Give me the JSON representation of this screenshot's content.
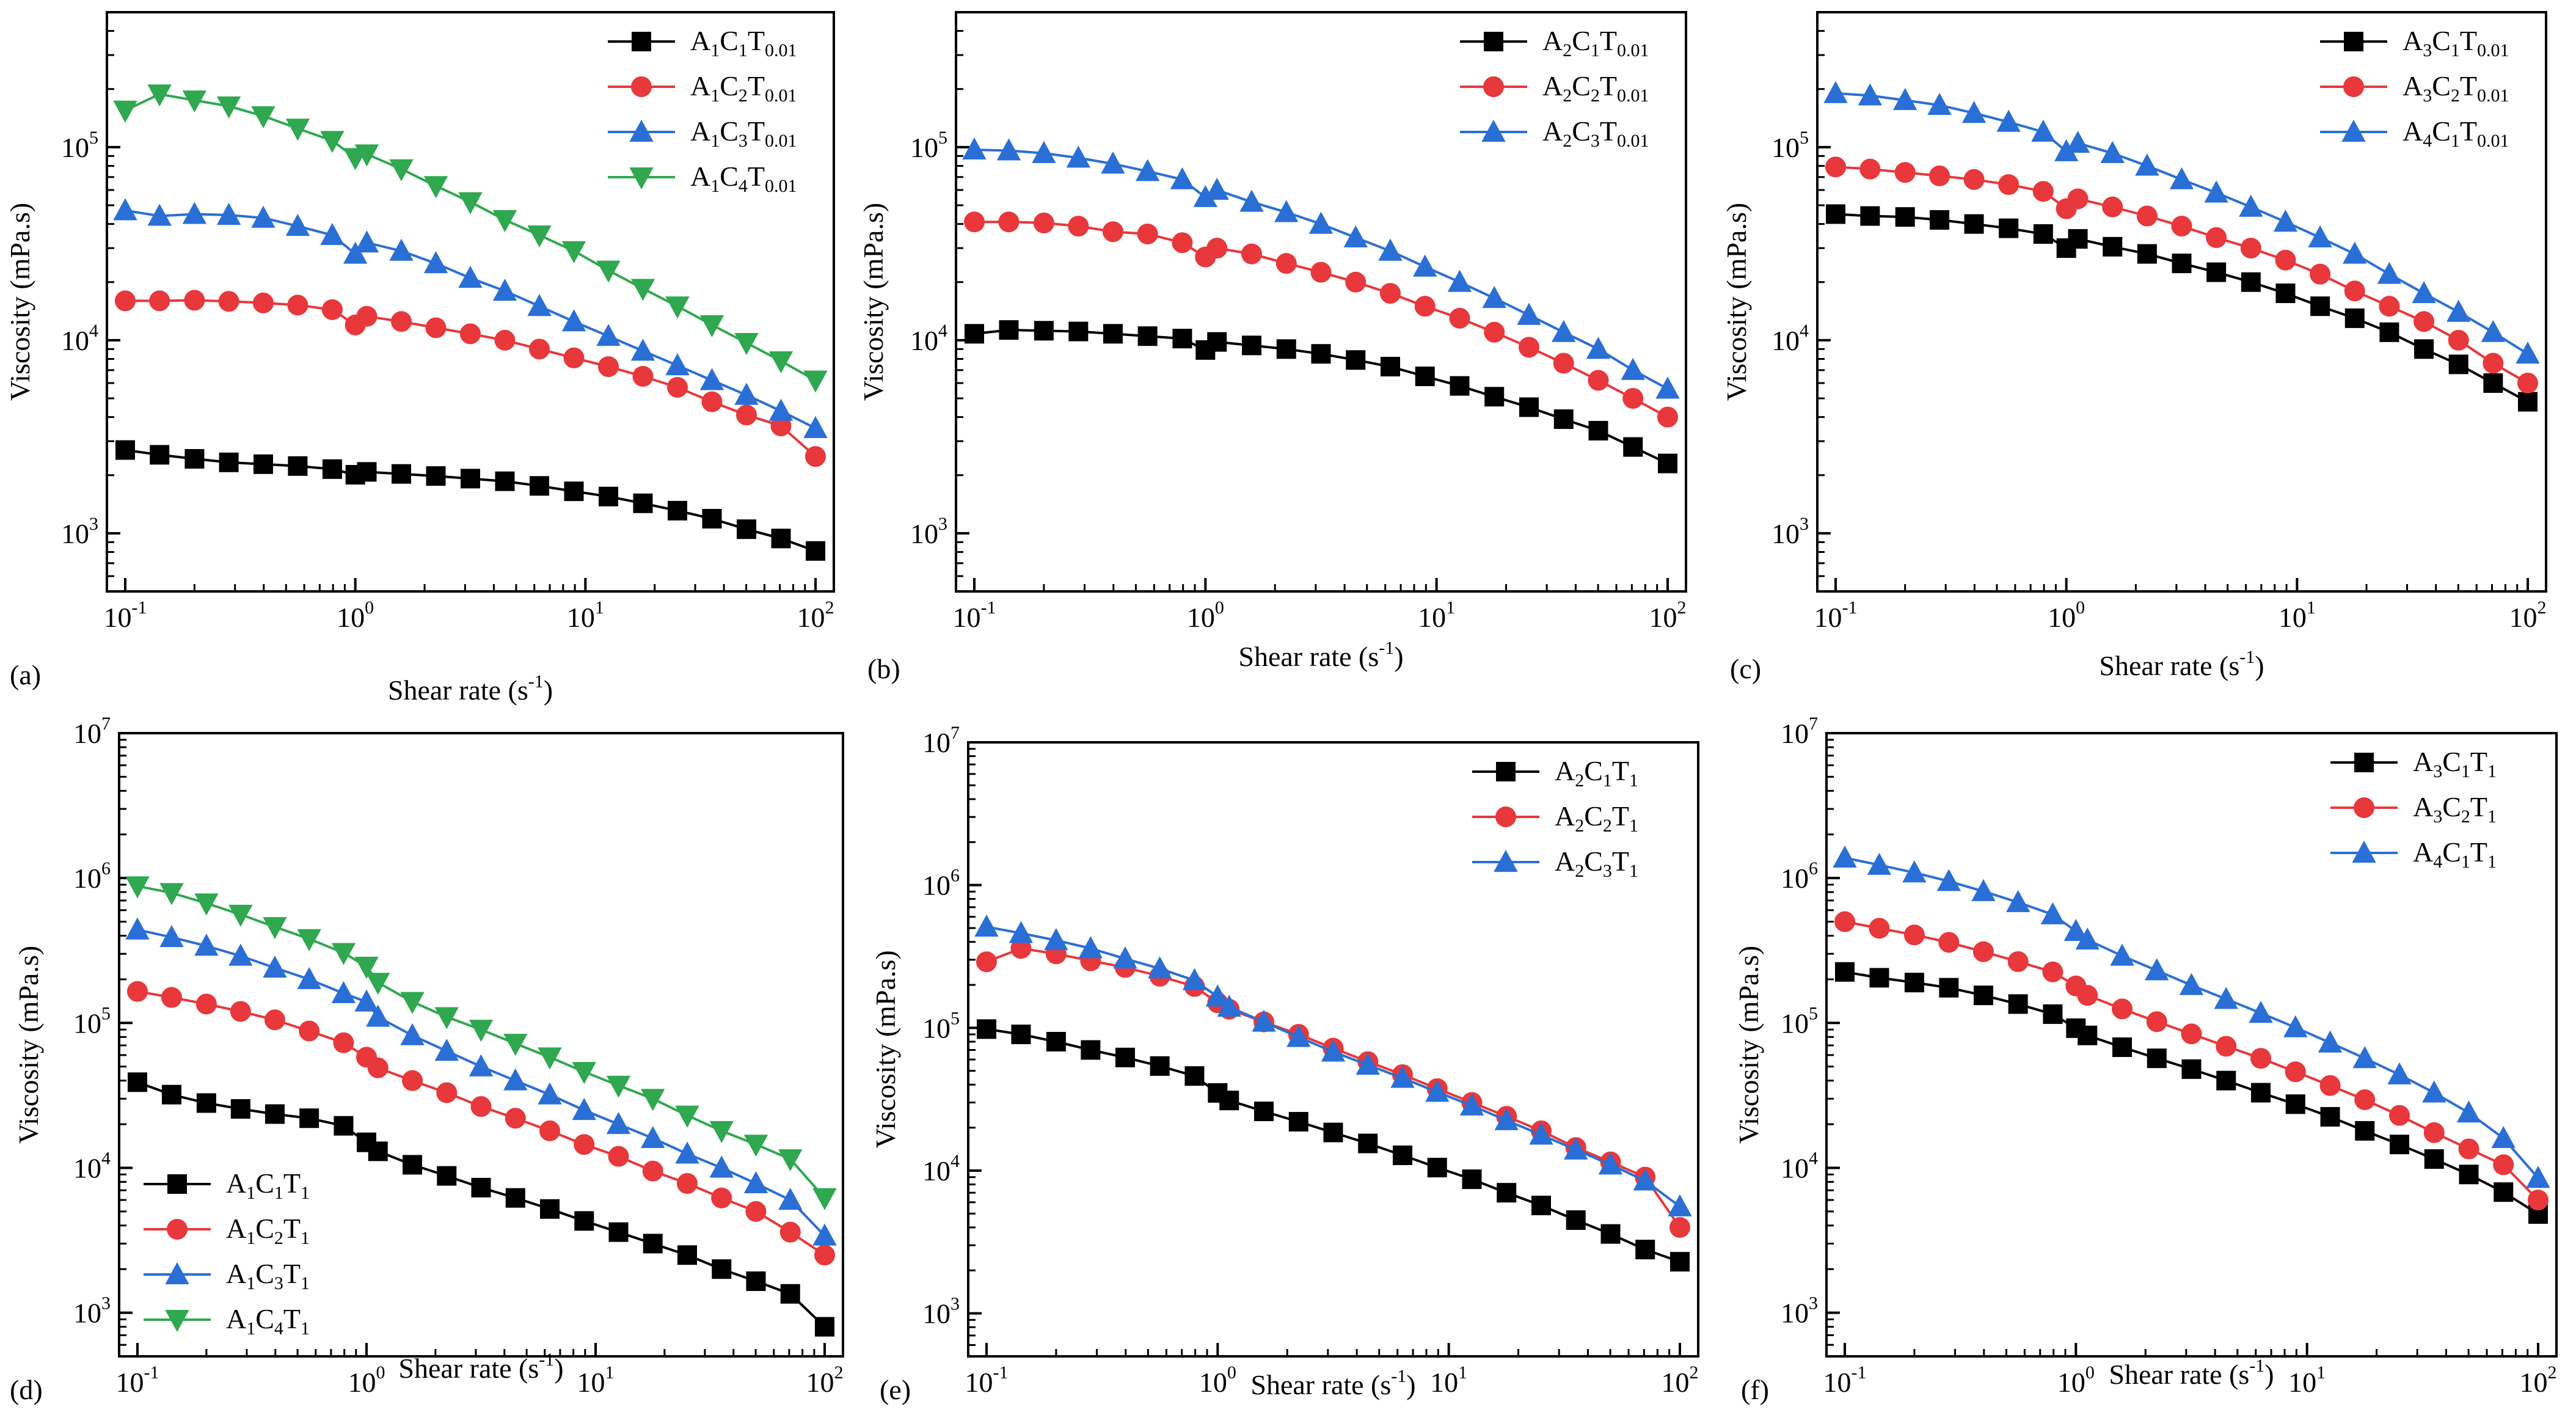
{
  "figure": {
    "xlabel_main": "Shear rate (s",
    "xlabel_sup": "-1",
    "xlabel_close": ")",
    "ylabel": "Viscosity (mPa.s)"
  },
  "colors": {
    "C1": "#000000",
    "C2": "#e8383b",
    "C3": "#2a6fd6",
    "C4": "#2fa84f"
  },
  "chart_data": [
    {
      "id": "a",
      "panel_label": "(a)",
      "type": "line",
      "xscale": "log",
      "yscale": "log",
      "xlim": [
        0.1,
        100
      ],
      "ylim": [
        500,
        500000
      ],
      "ytick_exps": [
        3,
        4,
        5
      ],
      "legend_position": "top-right",
      "x": [
        0.1,
        0.141,
        0.2,
        0.282,
        0.398,
        0.562,
        0.794,
        1.0,
        1.122,
        1.585,
        2.239,
        3.162,
        4.467,
        6.31,
        8.913,
        12.59,
        17.78,
        25.12,
        35.48,
        50.12,
        70.79,
        100
      ],
      "series": [
        {
          "name": "A1C1T0.01",
          "legend": [
            "A",
            "1",
            "C",
            "1",
            "T",
            "0.01"
          ],
          "color_key": "C1",
          "marker": "square",
          "values": [
            2700,
            2550,
            2430,
            2330,
            2280,
            2230,
            2150,
            2010,
            2080,
            2030,
            1980,
            1920,
            1860,
            1760,
            1650,
            1550,
            1430,
            1310,
            1190,
            1050,
            940,
            810
          ]
        },
        {
          "name": "A1C2T0.01",
          "legend": [
            "A",
            "1",
            "C",
            "2",
            "T",
            "0.01"
          ],
          "color_key": "C2",
          "marker": "circle",
          "values": [
            16000,
            16000,
            16100,
            15900,
            15600,
            15200,
            14400,
            12000,
            13300,
            12500,
            11600,
            10800,
            10000,
            9000,
            8100,
            7300,
            6500,
            5700,
            4800,
            4100,
            3600,
            2500
          ]
        },
        {
          "name": "A1C3T0.01",
          "legend": [
            "A",
            "1",
            "C",
            "3",
            "T",
            "0.01"
          ],
          "color_key": "C3",
          "marker": "triangle-up",
          "values": [
            47000,
            44000,
            45000,
            44500,
            43000,
            39000,
            35000,
            28000,
            32000,
            29000,
            25000,
            21000,
            18000,
            15000,
            12500,
            10500,
            8800,
            7400,
            6200,
            5200,
            4300,
            3500
          ]
        },
        {
          "name": "A1C4T0.01",
          "legend": [
            "A",
            "1",
            "C",
            "4",
            "T",
            "0.01"
          ],
          "color_key": "C4",
          "marker": "triangle-down",
          "values": [
            155000,
            188000,
            175000,
            163000,
            145000,
            125000,
            108000,
            88000,
            92000,
            77000,
            63000,
            52000,
            42000,
            35000,
            29000,
            23000,
            18500,
            15000,
            12000,
            9700,
            7800,
            6200
          ]
        }
      ]
    },
    {
      "id": "b",
      "panel_label": "(b)",
      "type": "line",
      "xscale": "log",
      "yscale": "log",
      "xlim": [
        0.1,
        100
      ],
      "ylim": [
        500,
        500000
      ],
      "ytick_exps": [
        3,
        4,
        5
      ],
      "legend_position": "top-right",
      "x": [
        0.1,
        0.141,
        0.2,
        0.282,
        0.398,
        0.562,
        0.794,
        1.0,
        1.122,
        1.585,
        2.239,
        3.162,
        4.467,
        6.31,
        8.913,
        12.59,
        17.78,
        25.12,
        35.48,
        50.12,
        70.79,
        100
      ],
      "series": [
        {
          "name": "A2C1T0.01",
          "legend": [
            "A",
            "2",
            "C",
            "1",
            "T",
            "0.01"
          ],
          "color_key": "C1",
          "marker": "square",
          "values": [
            10800,
            11300,
            11200,
            11100,
            10800,
            10500,
            10200,
            8900,
            9800,
            9400,
            9000,
            8500,
            7900,
            7300,
            6500,
            5800,
            5100,
            4500,
            3900,
            3400,
            2800,
            2300
          ]
        },
        {
          "name": "A2C2T0.01",
          "legend": [
            "A",
            "2",
            "C",
            "2",
            "T",
            "0.01"
          ],
          "color_key": "C2",
          "marker": "circle",
          "values": [
            41000,
            41000,
            40500,
            39000,
            36500,
            35500,
            32000,
            27000,
            30000,
            28000,
            25000,
            22500,
            20000,
            17500,
            15000,
            13000,
            11000,
            9200,
            7600,
            6200,
            5000,
            4000
          ]
        },
        {
          "name": "A2C3T0.01",
          "legend": [
            "A",
            "2",
            "C",
            "3",
            "T",
            "0.01"
          ],
          "color_key": "C3",
          "marker": "triangle-up",
          "values": [
            97000,
            96000,
            93000,
            88000,
            82000,
            75000,
            68000,
            55000,
            60000,
            52000,
            46000,
            40000,
            34000,
            29000,
            24000,
            20000,
            16500,
            13500,
            11000,
            9000,
            7000,
            5600
          ]
        }
      ]
    },
    {
      "id": "c",
      "panel_label": "(c)",
      "type": "line",
      "xscale": "log",
      "yscale": "log",
      "xlim": [
        0.1,
        100
      ],
      "ylim": [
        500,
        500000
      ],
      "ytick_exps": [
        3,
        4,
        5
      ],
      "legend_position": "top-right",
      "x": [
        0.1,
        0.141,
        0.2,
        0.282,
        0.398,
        0.562,
        0.794,
        1.0,
        1.122,
        1.585,
        2.239,
        3.162,
        4.467,
        6.31,
        8.913,
        12.59,
        17.78,
        25.12,
        35.48,
        50.12,
        70.79,
        100
      ],
      "series": [
        {
          "name": "A3C1T0.01",
          "legend": [
            "A",
            "3",
            "C",
            "1",
            "T",
            "0.01"
          ],
          "color_key": "C1",
          "marker": "square",
          "values": [
            45000,
            44000,
            43500,
            42000,
            40000,
            38000,
            35500,
            30000,
            33500,
            30500,
            28000,
            25000,
            22500,
            20000,
            17500,
            15000,
            13000,
            11000,
            9000,
            7500,
            6000,
            4800
          ]
        },
        {
          "name": "A3C2T0.01",
          "legend": [
            "A",
            "3",
            "C",
            "2",
            "T",
            "0.01"
          ],
          "color_key": "C2",
          "marker": "circle",
          "values": [
            79000,
            77000,
            74000,
            71000,
            68000,
            64000,
            59000,
            48000,
            54000,
            49000,
            44000,
            39000,
            34000,
            30000,
            26000,
            22000,
            18000,
            15000,
            12500,
            10000,
            7600,
            6000
          ]
        },
        {
          "name": "A4C1T0.01",
          "legend": [
            "A",
            "4",
            "C",
            "1",
            "T",
            "0.01"
          ],
          "color_key": "C3",
          "marker": "triangle-up",
          "values": [
            190000,
            185000,
            175000,
            165000,
            150000,
            135000,
            120000,
            95000,
            105000,
            93000,
            80000,
            68000,
            58000,
            49000,
            41000,
            34000,
            28000,
            22000,
            17500,
            14000,
            11000,
            8500
          ]
        }
      ]
    },
    {
      "id": "d",
      "panel_label": "(d)",
      "type": "line",
      "xscale": "log",
      "yscale": "log",
      "xlim": [
        0.1,
        100
      ],
      "ylim": [
        500,
        10000000
      ],
      "ytick_exps": [
        3,
        4,
        5,
        6,
        7
      ],
      "legend_position": "bottom-left",
      "x": [
        0.1,
        0.141,
        0.2,
        0.282,
        0.398,
        0.562,
        0.794,
        1.0,
        1.122,
        1.585,
        2.239,
        3.162,
        4.467,
        6.31,
        8.913,
        12.59,
        17.78,
        25.12,
        35.48,
        50.12,
        70.79,
        100
      ],
      "series": [
        {
          "name": "A1C1T1",
          "legend": [
            "A",
            "1",
            "C",
            "1",
            "T",
            "1"
          ],
          "color_key": "C1",
          "marker": "square",
          "values": [
            39000,
            32000,
            28000,
            25500,
            23500,
            22000,
            19500,
            15000,
            13000,
            10500,
            8800,
            7300,
            6200,
            5200,
            4300,
            3600,
            3000,
            2500,
            2000,
            1650,
            1350,
            800
          ]
        },
        {
          "name": "A1C2T1",
          "legend": [
            "A",
            "1",
            "C",
            "2",
            "T",
            "1"
          ],
          "color_key": "C2",
          "marker": "circle",
          "values": [
            165000,
            150000,
            135000,
            120000,
            105000,
            88000,
            73000,
            58000,
            49000,
            40000,
            33000,
            26500,
            22000,
            18000,
            14500,
            12000,
            9500,
            7800,
            6200,
            5000,
            3600,
            2500
          ]
        },
        {
          "name": "A1C3T1",
          "legend": [
            "A",
            "1",
            "C",
            "3",
            "T",
            "1"
          ],
          "color_key": "C3",
          "marker": "triangle-up",
          "values": [
            440000,
            390000,
            340000,
            290000,
            240000,
            200000,
            160000,
            140000,
            110000,
            82000,
            64000,
            50000,
            40000,
            32000,
            25000,
            20000,
            16000,
            12500,
            10000,
            7800,
            6000,
            3400
          ]
        },
        {
          "name": "A1C4T1",
          "legend": [
            "A",
            "1",
            "C",
            "4",
            "T",
            "1"
          ],
          "color_key": "C4",
          "marker": "triangle-down",
          "values": [
            880000,
            790000,
            670000,
            560000,
            460000,
            380000,
            305000,
            245000,
            190000,
            140000,
            110000,
            90000,
            72000,
            58000,
            46000,
            37000,
            30000,
            23000,
            18000,
            14500,
            11500,
            6200
          ]
        }
      ]
    },
    {
      "id": "e",
      "panel_label": "(e)",
      "type": "line",
      "xscale": "log",
      "yscale": "log",
      "xlim": [
        0.1,
        100
      ],
      "ylim": [
        500,
        10000000
      ],
      "ytick_exps": [
        3,
        4,
        5,
        6,
        7
      ],
      "legend_position": "top-right",
      "x": [
        0.1,
        0.141,
        0.2,
        0.282,
        0.398,
        0.562,
        0.794,
        1.0,
        1.122,
        1.585,
        2.239,
        3.162,
        4.467,
        6.31,
        8.913,
        12.59,
        17.78,
        25.12,
        35.48,
        50.12,
        70.79,
        100
      ],
      "series": [
        {
          "name": "A2C1T1",
          "legend": [
            "A",
            "2",
            "C",
            "1",
            "T",
            "1"
          ],
          "color_key": "C1",
          "marker": "square",
          "values": [
            98000,
            90000,
            80000,
            70000,
            62000,
            54000,
            46000,
            35000,
            31000,
            26000,
            22000,
            18500,
            15500,
            12800,
            10500,
            8700,
            7000,
            5700,
            4500,
            3600,
            2800,
            2300
          ]
        },
        {
          "name": "A2C2T1",
          "legend": [
            "A",
            "2",
            "C",
            "2",
            "T",
            "1"
          ],
          "color_key": "C2",
          "marker": "circle",
          "values": [
            290000,
            360000,
            330000,
            295000,
            265000,
            230000,
            195000,
            150000,
            135000,
            110000,
            90000,
            72000,
            58000,
            47000,
            37500,
            30000,
            24000,
            19000,
            14500,
            11500,
            9000,
            4000
          ]
        },
        {
          "name": "A2C3T1",
          "legend": [
            "A",
            "2",
            "C",
            "3",
            "T",
            "1"
          ],
          "color_key": "C3",
          "marker": "triangle-up",
          "values": [
            510000,
            460000,
            410000,
            360000,
            305000,
            260000,
            215000,
            165000,
            140000,
            110000,
            86000,
            68000,
            55000,
            44500,
            35500,
            28500,
            22500,
            17800,
            14000,
            11000,
            8500,
            5600
          ]
        }
      ]
    },
    {
      "id": "f",
      "panel_label": "(f)",
      "type": "line",
      "xscale": "log",
      "yscale": "log",
      "xlim": [
        0.1,
        100
      ],
      "ylim": [
        500,
        10000000
      ],
      "ytick_exps": [
        3,
        4,
        5,
        6,
        7
      ],
      "legend_position": "top-right",
      "x": [
        0.1,
        0.141,
        0.2,
        0.282,
        0.398,
        0.562,
        0.794,
        1.0,
        1.122,
        1.585,
        2.239,
        3.162,
        4.467,
        6.31,
        8.913,
        12.59,
        17.78,
        25.12,
        35.48,
        50.12,
        70.79,
        100
      ],
      "series": [
        {
          "name": "A3C1T1",
          "legend": [
            "A",
            "3",
            "C",
            "1",
            "T",
            "1"
          ],
          "color_key": "C1",
          "marker": "square",
          "values": [
            225000,
            205000,
            190000,
            175000,
            155000,
            135000,
            115000,
            92000,
            82000,
            68000,
            57000,
            48000,
            40000,
            33000,
            27500,
            22500,
            18000,
            14500,
            11500,
            9000,
            6800,
            4800
          ]
        },
        {
          "name": "A3C2T1",
          "legend": [
            "A",
            "3",
            "C",
            "2",
            "T",
            "1"
          ],
          "color_key": "C2",
          "marker": "circle",
          "values": [
            500000,
            450000,
            405000,
            360000,
            310000,
            265000,
            225000,
            180000,
            155000,
            125000,
            102000,
            84000,
            69000,
            57000,
            46000,
            37000,
            29500,
            23000,
            17500,
            13500,
            10500,
            6000
          ]
        },
        {
          "name": "A4C1T1",
          "legend": [
            "A",
            "4",
            "C",
            "1",
            "T",
            "1"
          ],
          "color_key": "C3",
          "marker": "triangle-up",
          "values": [
            1380000,
            1230000,
            1090000,
            950000,
            810000,
            680000,
            560000,
            430000,
            375000,
            290000,
            230000,
            182000,
            146000,
            117000,
            93000,
            73000,
            57000,
            44000,
            33000,
            24000,
            16000,
            8500
          ]
        }
      ]
    }
  ]
}
